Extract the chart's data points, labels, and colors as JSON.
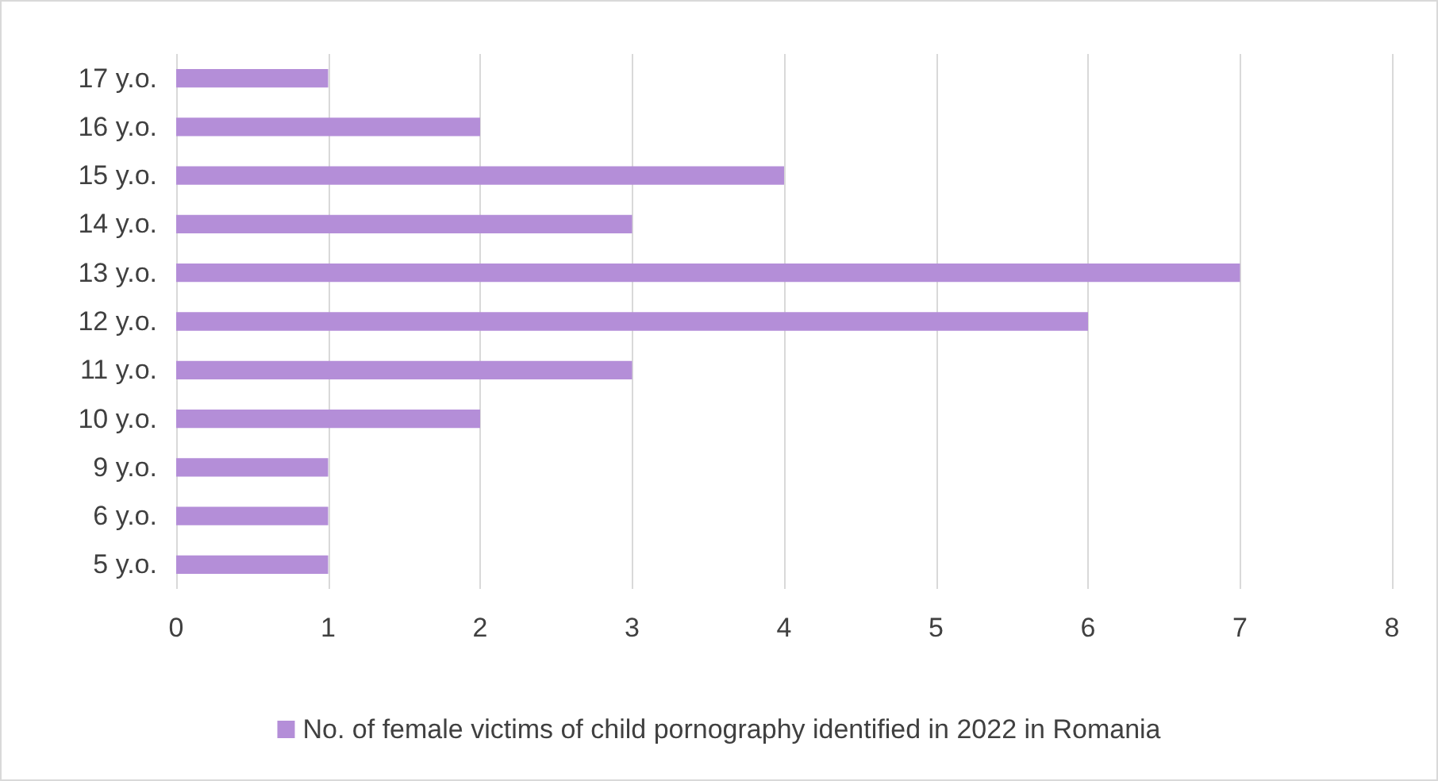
{
  "chart_data": {
    "type": "bar",
    "orientation": "horizontal",
    "categories": [
      "17 y.o.",
      "16 y.o.",
      "15 y.o.",
      "14 y.o.",
      "13 y.o.",
      "12 y.o.",
      "11 y.o.",
      "10 y.o.",
      "9 y.o.",
      "6 y.o.",
      "5 y.o."
    ],
    "series": [
      {
        "name": "No. of female victims of child pornography identified in 2022 in Romania",
        "color": "#b48ed8",
        "values": [
          1,
          2,
          4,
          3,
          7,
          6,
          3,
          2,
          1,
          1,
          1
        ]
      }
    ],
    "xlim": [
      0,
      8
    ],
    "xticks": [
      0,
      1,
      2,
      3,
      4,
      5,
      6,
      7,
      8
    ],
    "grid": "x",
    "legend": "bottom"
  }
}
